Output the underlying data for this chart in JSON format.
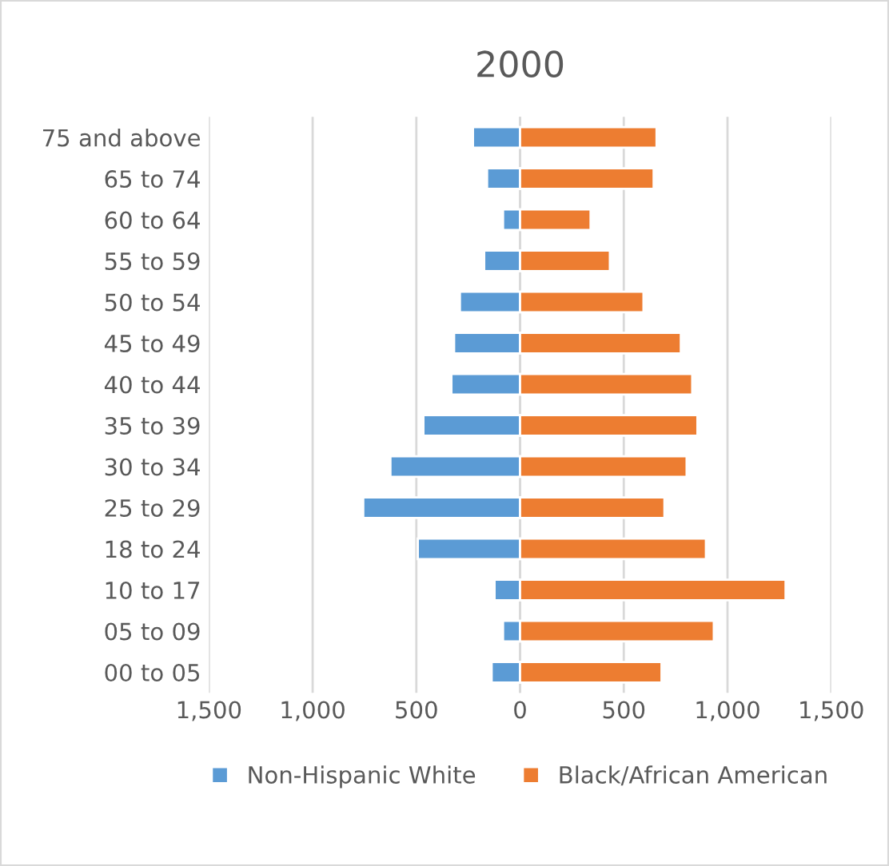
{
  "chart_data": {
    "type": "bar",
    "title": "2000",
    "orientation": "horizontal",
    "stacked": true,
    "categories": [
      "75 and above",
      "65 to 74",
      "60 to 64",
      "55 to 59",
      "50 to 54",
      "45 to 49",
      "40 to 44",
      "35 to 39",
      "30 to 34",
      "25 to 29",
      "18 to 24",
      "10 to 17",
      "05 to 09",
      "00 to 05"
    ],
    "series": [
      {
        "name": "Non-Hispanic White",
        "color": "#5b9bd5",
        "values": [
          -227,
          -159,
          -82,
          -173,
          -290,
          -318,
          -331,
          -466,
          -625,
          -756,
          -493,
          -123,
          -82,
          -137
        ]
      },
      {
        "name": "Black/African American",
        "color": "#ed7d31",
        "values": [
          658,
          644,
          340,
          433,
          595,
          775,
          830,
          855,
          803,
          696,
          896,
          1280,
          934,
          682
        ]
      }
    ],
    "xlim": [
      -1500,
      1500
    ],
    "xticks": [
      {
        "value": -1500,
        "label": "1,500"
      },
      {
        "value": -1000,
        "label": "1,000"
      },
      {
        "value": -500,
        "label": "500"
      },
      0,
      500,
      {
        "value": 1000,
        "label": "1,000"
      },
      {
        "value": 1500,
        "label": "1,500"
      }
    ],
    "grid": "x",
    "legend": "bottom"
  }
}
